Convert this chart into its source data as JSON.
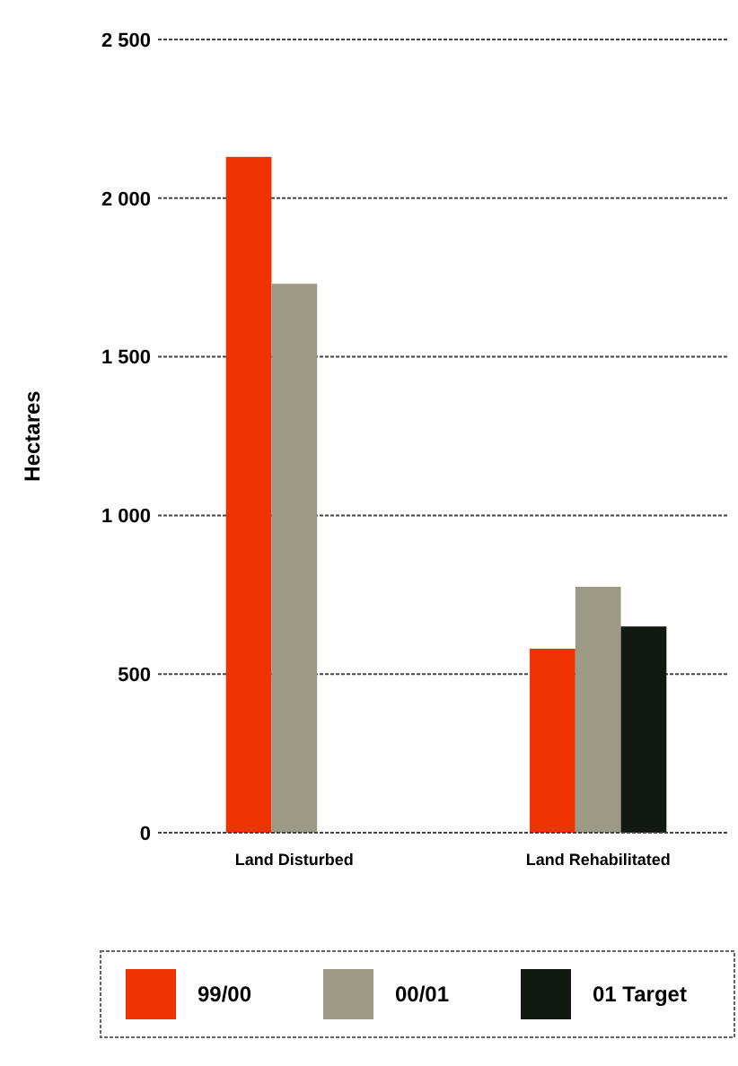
{
  "chart_data": {
    "type": "bar",
    "ylabel": "Hectares",
    "categories": [
      "Land Disturbed",
      "Land Rehabilitated"
    ],
    "series": [
      {
        "name": "99/00",
        "color": "#ee3300",
        "values": [
          2130,
          580
        ]
      },
      {
        "name": "00/01",
        "color": "#9c9a84",
        "values": [
          1730,
          775
        ]
      },
      {
        "name": "01 Target",
        "color": "#121812",
        "values": [
          null,
          650
        ]
      }
    ],
    "ylim": [
      0,
      2500
    ],
    "yticks": [
      {
        "value": 0,
        "label": "0"
      },
      {
        "value": 500,
        "label": "500"
      },
      {
        "value": 1000,
        "label": "1 000"
      },
      {
        "value": 1500,
        "label": "1 500"
      },
      {
        "value": 2000,
        "label": "2 000"
      },
      {
        "value": 2500,
        "label": "2 500"
      }
    ],
    "grid": "y",
    "legend": "bottom"
  }
}
